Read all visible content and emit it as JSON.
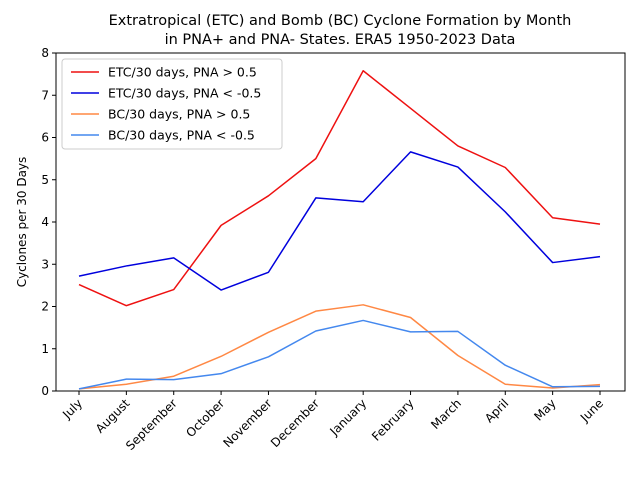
{
  "chart_data": {
    "type": "line",
    "title_line1": "Extratropical (ETC) and Bomb (BC) Cyclone Formation by Month",
    "title_line2": "in PNA+ and PNA- States. ERA5 1950-2023 Data",
    "xlabel": "",
    "ylabel": "Cyclones per 30 Days",
    "ylim": [
      0,
      8
    ],
    "yticks": [
      "0",
      "1",
      "2",
      "3",
      "4",
      "5",
      "6",
      "7",
      "8"
    ],
    "categories": [
      "July",
      "August",
      "September",
      "October",
      "November",
      "December",
      "January",
      "February",
      "March",
      "April",
      "May",
      "June"
    ],
    "legend_position": "upper-left",
    "grid": false,
    "series": [
      {
        "name": "ETC/30 days, PNA > 0.5",
        "color": "#ee1111",
        "values": [
          2.52,
          2.02,
          2.4,
          3.92,
          4.62,
          5.5,
          7.58,
          6.69,
          5.8,
          5.29,
          4.1,
          3.95
        ]
      },
      {
        "name": "ETC/30 days, PNA < -0.5",
        "color": "#0000dd",
        "values": [
          2.72,
          2.96,
          3.15,
          2.39,
          2.81,
          4.57,
          4.48,
          5.66,
          5.3,
          4.24,
          3.04,
          3.18
        ]
      },
      {
        "name": "BC/30 days, PNA > 0.5",
        "color": "#ff8844",
        "values": [
          0.05,
          0.16,
          0.35,
          0.82,
          1.39,
          1.89,
          2.04,
          1.74,
          0.84,
          0.16,
          0.07,
          0.15
        ]
      },
      {
        "name": "BC/30 days, PNA < -0.5",
        "color": "#4488ee",
        "values": [
          0.05,
          0.28,
          0.27,
          0.41,
          0.81,
          1.42,
          1.67,
          1.4,
          1.41,
          0.61,
          0.1,
          0.11
        ]
      }
    ]
  }
}
